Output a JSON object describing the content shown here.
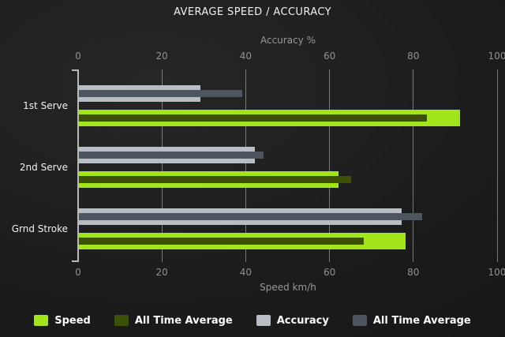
{
  "chart_data": {
    "type": "bar",
    "orientation": "horizontal",
    "title": "AVERAGE SPEED / ACCURACY",
    "categories": [
      "1st Serve",
      "2nd Serve",
      "Grnd Stroke"
    ],
    "series": [
      {
        "name": "Speed",
        "axis": "bottom",
        "row": 1,
        "layer": "main",
        "color": "#a2e51d",
        "values": [
          91,
          62,
          78
        ]
      },
      {
        "name": "All Time Average",
        "axis": "bottom",
        "row": 1,
        "layer": "overlay",
        "color": "#3c5007",
        "values": [
          83,
          65,
          68
        ]
      },
      {
        "name": "Accuracy",
        "axis": "top",
        "row": 0,
        "layer": "main",
        "color": "#b8bec4",
        "values": [
          29,
          42,
          77
        ]
      },
      {
        "name": "All Time Average",
        "axis": "top",
        "row": 0,
        "layer": "overlay",
        "color": "#4d555e",
        "values": [
          39,
          44,
          82
        ]
      }
    ],
    "axes": {
      "top": {
        "label": "Accuracy %",
        "ticks": [
          0,
          20,
          40,
          60,
          80,
          100
        ],
        "range": [
          0,
          100
        ]
      },
      "bottom": {
        "label": "Speed km/h",
        "ticks": [
          0,
          20,
          40,
          60,
          80,
          100
        ],
        "range": [
          0,
          100
        ]
      }
    },
    "legend": [
      {
        "label": "Speed",
        "color": "#a2e51d"
      },
      {
        "label": "All Time Average",
        "color": "#3c5007"
      },
      {
        "label": "Accuracy",
        "color": "#b8bec4"
      },
      {
        "label": "All Time Average",
        "color": "#4d555e"
      }
    ],
    "grid": true,
    "colors": {
      "background_dark": "#131313",
      "gridline": "#9f9f9f",
      "axis_line": "#b9b9b9",
      "tick_text": "#8f8f8f",
      "title_text": "#f1f1f1",
      "category_text": "#f0f0f0",
      "legend_text": "#fafafa"
    }
  }
}
